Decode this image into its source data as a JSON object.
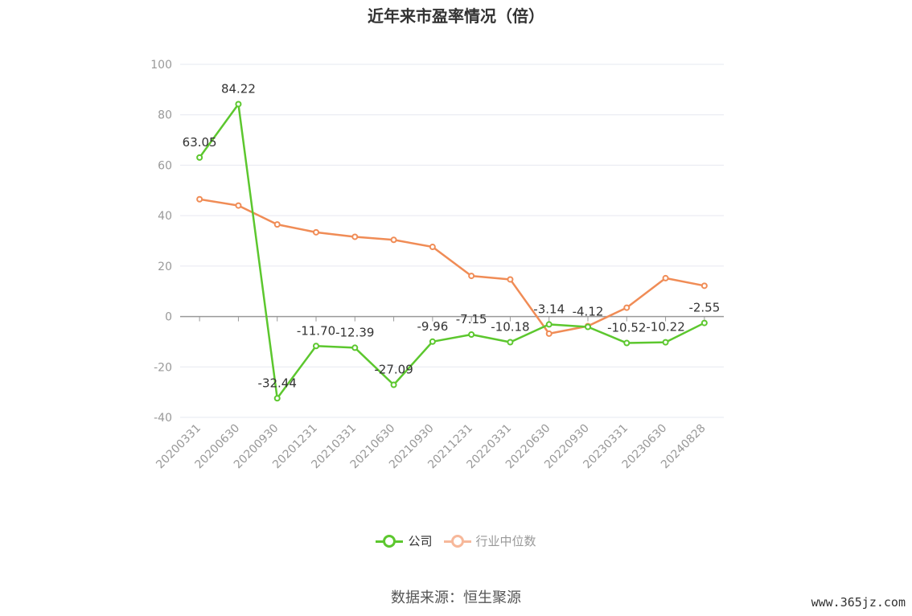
{
  "chart_data": {
    "type": "line",
    "title": "近年来市盈率情况（倍）",
    "categories": [
      "20200331",
      "20200630",
      "20200930",
      "20201231",
      "20210331",
      "20210630",
      "20210930",
      "20211231",
      "20220331",
      "20220630",
      "20220930",
      "20230331",
      "20230630",
      "20240828"
    ],
    "series": [
      {
        "name": "公司",
        "color": "#5cc72e",
        "values": [
          63.05,
          84.22,
          -32.44,
          -11.7,
          -12.39,
          -27.09,
          -9.96,
          -7.15,
          -10.18,
          -3.14,
          -4.12,
          -10.52,
          -10.22,
          -2.55
        ],
        "labels": [
          "63.05",
          "84.22",
          "-32.44",
          "-11.70",
          "-12.39",
          "-27.09",
          "-9.96",
          "-7.15",
          "-10.18",
          "-3.14",
          "-4.12",
          "-10.52",
          "-10.22",
          "-2.55"
        ]
      },
      {
        "name": "行业中位数",
        "color": "#f08c56",
        "values": [
          46.5,
          44.0,
          36.5,
          33.4,
          31.6,
          30.4,
          27.6,
          16.1,
          14.7,
          -6.8,
          -3.8,
          3.5,
          15.2,
          12.2
        ]
      }
    ],
    "yticks": [
      100,
      80,
      60,
      40,
      20,
      0,
      -20,
      -40
    ],
    "ylim": [
      -40,
      100
    ],
    "grid": true,
    "legend_position": "bottom"
  },
  "source_text": "数据来源：恒生聚源",
  "watermark": "www.365jz.com"
}
